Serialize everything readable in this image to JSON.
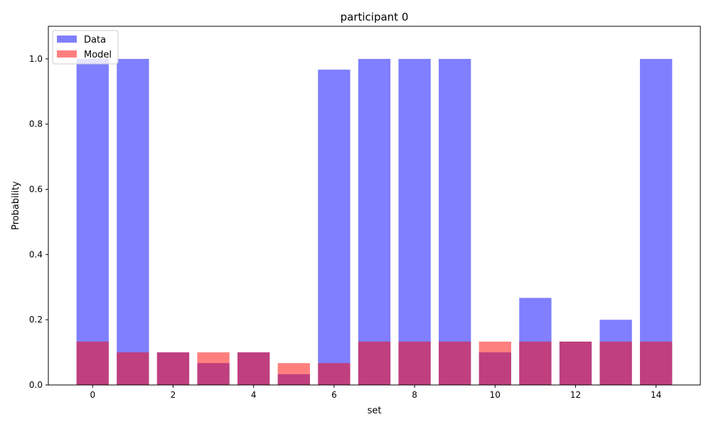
{
  "chart_data": {
    "type": "bar",
    "title": "participant 0",
    "xlabel": "set",
    "ylabel": "Probability",
    "x": [
      0,
      1,
      2,
      3,
      4,
      5,
      6,
      7,
      8,
      9,
      10,
      11,
      12,
      13,
      14
    ],
    "xlim": [
      -1.1,
      15.1
    ],
    "ylim": [
      0,
      1.1
    ],
    "xticks": [
      0,
      2,
      4,
      6,
      8,
      10,
      12,
      14
    ],
    "yticks": [
      0.0,
      0.2,
      0.4,
      0.6,
      0.8,
      1.0
    ],
    "ytick_labels": [
      "0.0",
      "0.2",
      "0.4",
      "0.6",
      "0.8",
      "1.0"
    ],
    "grid": false,
    "legend_position": "top-left",
    "series": [
      {
        "name": "Data",
        "color": "#0000ff",
        "opacity": 0.5,
        "values": [
          1.0,
          1.0,
          0.1,
          0.067,
          0.1,
          0.033,
          0.967,
          1.0,
          1.0,
          1.0,
          0.1,
          0.267,
          0.133,
          0.2,
          1.0
        ]
      },
      {
        "name": "Model",
        "color": "#ff0000",
        "opacity": 0.5,
        "values": [
          0.133,
          0.1,
          0.1,
          0.1,
          0.1,
          0.067,
          0.067,
          0.133,
          0.133,
          0.133,
          0.133,
          0.133,
          0.133,
          0.133,
          0.133
        ]
      }
    ]
  }
}
